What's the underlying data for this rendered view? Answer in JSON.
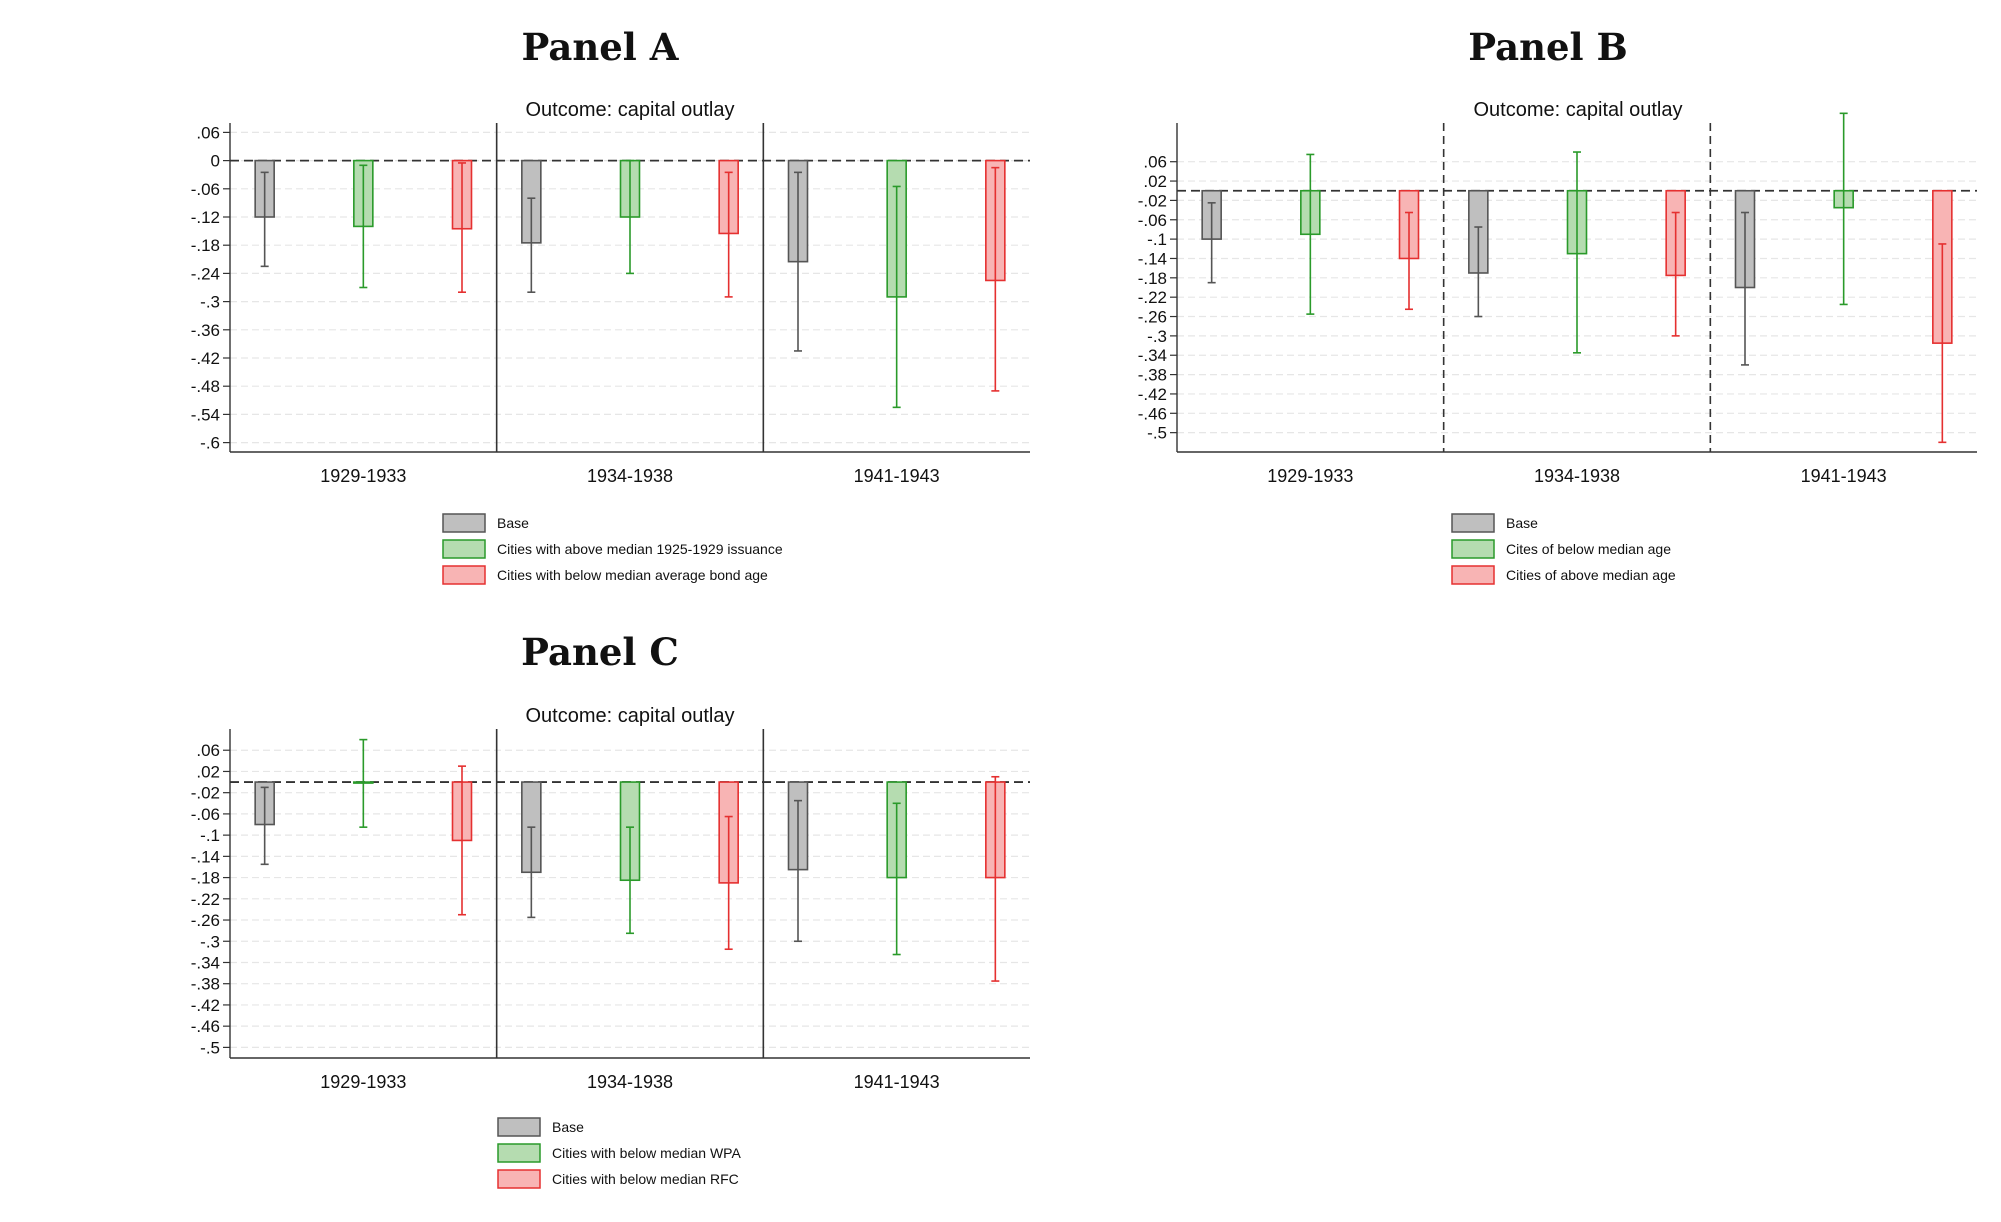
{
  "chart_data": [
    {
      "type": "bar",
      "panel": "Panel A",
      "title": "Outcome: capital outlay",
      "categories": [
        "1929-1933",
        "1934-1938",
        "1941-1943"
      ],
      "yticks": [
        ".06",
        "0",
        "-.06",
        "-.12",
        "-.18",
        "-.24",
        "-.3",
        "-.36",
        "-.42",
        "-.48",
        "-.54",
        "-.6"
      ],
      "ylim": [
        -0.62,
        0.08
      ],
      "baseline": 0,
      "separator_style": "solid",
      "grid": true,
      "series": [
        {
          "name": "Base",
          "color": "#555555",
          "fill": "#bfbfbf",
          "values": [
            -0.12,
            -0.175,
            -0.215
          ],
          "ci_low": [
            -0.225,
            -0.28,
            -0.405
          ],
          "ci_high": [
            -0.025,
            -0.08,
            -0.025
          ]
        },
        {
          "name": "Cities with above median 1925-1929 issuance",
          "color": "#2a9a2a",
          "fill": "#b5dcb0",
          "values": [
            -0.14,
            -0.12,
            -0.29
          ],
          "ci_low": [
            -0.27,
            -0.24,
            -0.525
          ],
          "ci_high": [
            -0.01,
            0.0,
            -0.055
          ]
        },
        {
          "name": "Cities with below median average bond age",
          "color": "#e53030",
          "fill": "#f8b4b4",
          "values": [
            -0.145,
            -0.155,
            -0.255
          ],
          "ci_low": [
            -0.28,
            -0.29,
            -0.49
          ],
          "ci_high": [
            -0.005,
            -0.025,
            -0.015
          ]
        }
      ]
    },
    {
      "type": "bar",
      "panel": "Panel B",
      "title": "Outcome: capital outlay",
      "categories": [
        "1929-1933",
        "1934-1938",
        "1941-1943"
      ],
      "yticks": [
        ".06",
        ".02",
        "-.02",
        "-.06",
        "-.1",
        "-.14",
        "-.18",
        "-.22",
        "-.26",
        "-.3",
        "-.34",
        "-.38",
        "-.42",
        "-.46",
        "-.5"
      ],
      "ylim": [
        -0.54,
        0.14
      ],
      "baseline": 0,
      "separator_style": "dashed",
      "grid": true,
      "series": [
        {
          "name": "Base",
          "color": "#555555",
          "fill": "#bfbfbf",
          "values": [
            -0.1,
            -0.17,
            -0.2
          ],
          "ci_low": [
            -0.19,
            -0.26,
            -0.36
          ],
          "ci_high": [
            -0.025,
            -0.075,
            -0.045
          ]
        },
        {
          "name": "Cites of below median age",
          "color": "#2a9a2a",
          "fill": "#b5dcb0",
          "values": [
            -0.09,
            -0.13,
            -0.035
          ],
          "ci_low": [
            -0.255,
            -0.335,
            -0.235
          ],
          "ci_high": [
            0.075,
            0.08,
            0.16
          ]
        },
        {
          "name": "Cities of above median age",
          "color": "#e53030",
          "fill": "#f8b4b4",
          "values": [
            -0.14,
            -0.175,
            -0.315
          ],
          "ci_low": [
            -0.245,
            -0.3,
            -0.52
          ],
          "ci_high": [
            -0.045,
            -0.045,
            -0.11
          ]
        }
      ]
    },
    {
      "type": "bar",
      "panel": "Panel C",
      "title": "Outcome: capital outlay",
      "categories": [
        "1929-1933",
        "1934-1938",
        "1941-1943"
      ],
      "yticks": [
        ".06",
        ".02",
        "-.02",
        "-.06",
        "-.1",
        "-.14",
        "-.18",
        "-.22",
        "-.26",
        "-.3",
        "-.34",
        "-.38",
        "-.42",
        "-.46",
        "-.5"
      ],
      "ylim": [
        -0.52,
        0.1
      ],
      "baseline": 0,
      "separator_style": "solid",
      "grid": true,
      "series": [
        {
          "name": "Base",
          "color": "#555555",
          "fill": "#bfbfbf",
          "values": [
            -0.08,
            -0.17,
            -0.165
          ],
          "ci_low": [
            -0.155,
            -0.255,
            -0.3
          ],
          "ci_high": [
            -0.01,
            -0.085,
            -0.035
          ]
        },
        {
          "name": "Cities with below median WPA",
          "color": "#2a9a2a",
          "fill": "#b5dcb0",
          "values": [
            0.0,
            -0.185,
            -0.18
          ],
          "ci_low": [
            -0.085,
            -0.285,
            -0.325
          ],
          "ci_high": [
            0.08,
            -0.085,
            -0.04
          ]
        },
        {
          "name": "Cities with below median RFC",
          "color": "#e53030",
          "fill": "#f8b4b4",
          "values": [
            -0.11,
            -0.19,
            -0.18
          ],
          "ci_low": [
            -0.25,
            -0.315,
            -0.375
          ],
          "ci_high": [
            0.03,
            -0.065,
            0.01
          ]
        }
      ]
    }
  ]
}
